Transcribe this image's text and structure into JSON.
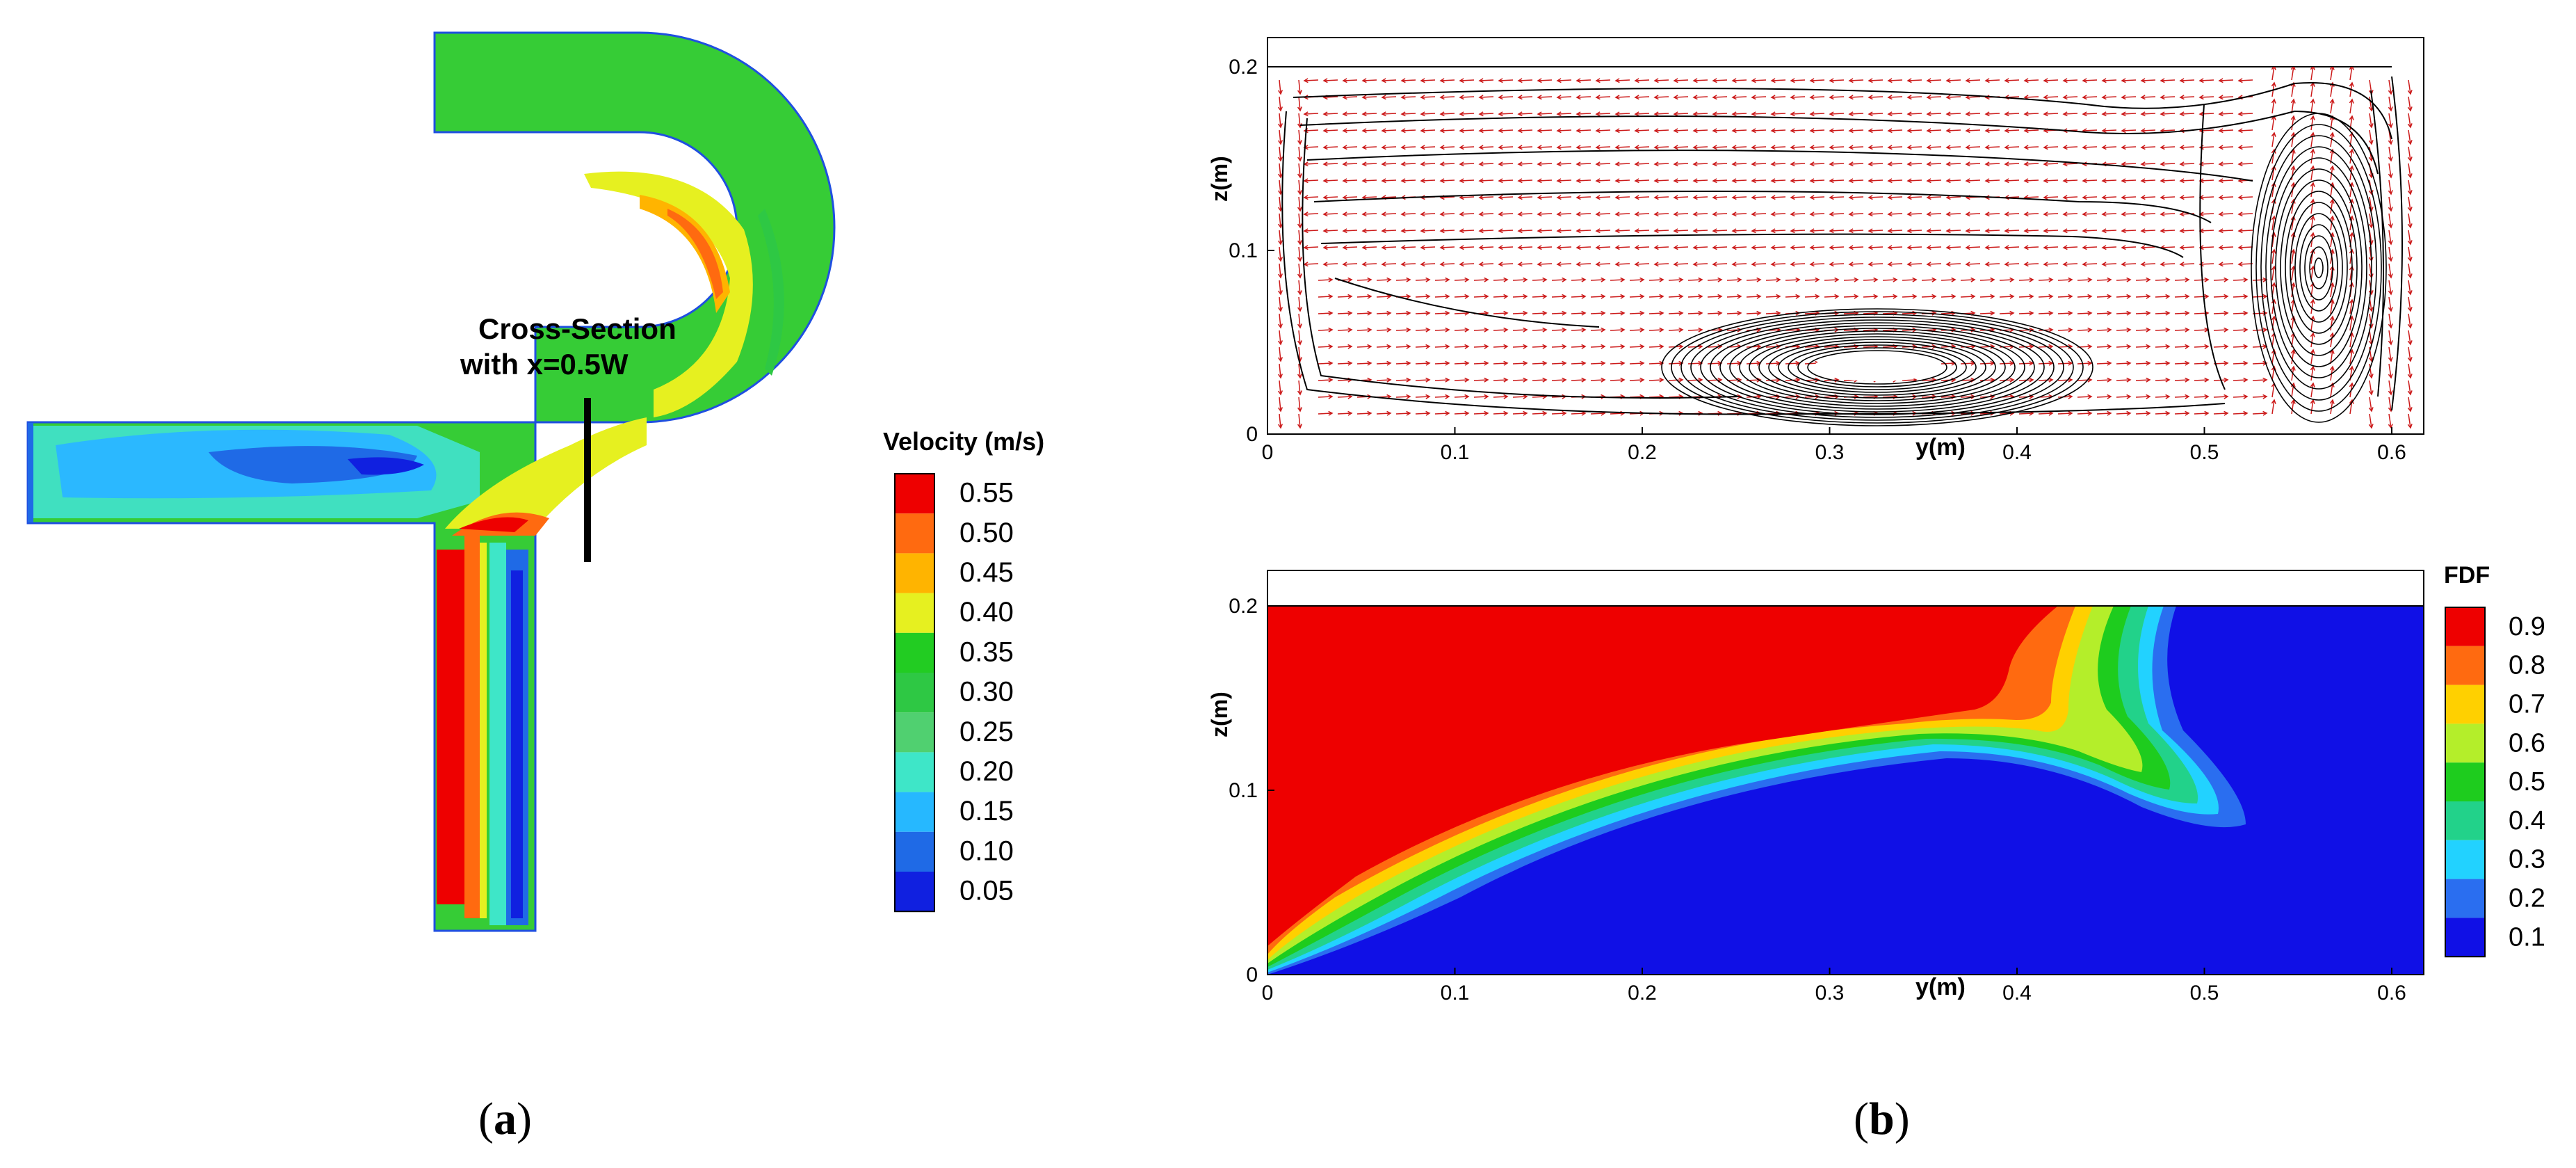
{
  "panel_a": {
    "annotation_line1": "Cross-Section",
    "annotation_line2": "with x=0.5W",
    "legend_title": "Velocity (m/s)",
    "legend_levels": [
      "0.55",
      "0.50",
      "0.45",
      "0.40",
      "0.35",
      "0.30",
      "0.25",
      "0.20",
      "0.15",
      "0.10",
      "0.05"
    ],
    "legend_colors": [
      "#ee0000",
      "#ff6a10",
      "#ffb400",
      "#e6f020",
      "#22cc22",
      "#2ec844",
      "#50d070",
      "#3ee6c8",
      "#26b8ff",
      "#1f6ae6",
      "#1020e0"
    ],
    "caption_open": "(",
    "caption_letter": "a",
    "caption_close": ")"
  },
  "panel_b": {
    "top_plot": {
      "xlabel": "y(m)",
      "ylabel": "z(m)",
      "xticks": [
        "0",
        "0.1",
        "0.2",
        "0.3",
        "0.4",
        "0.5",
        "0.6"
      ],
      "yticks": [
        "0",
        "0.1",
        "0.2"
      ],
      "arrow_color": "#cc1a1a",
      "streamline_color": "#000000"
    },
    "bottom_plot": {
      "xlabel": "y(m)",
      "ylabel": "z(m)",
      "xticks": [
        "0",
        "0.1",
        "0.2",
        "0.3",
        "0.4",
        "0.5",
        "0.6"
      ],
      "yticks": [
        "0",
        "0.1",
        "0.2"
      ],
      "legend_title": "FDF",
      "legend_levels": [
        "0.9",
        "0.8",
        "0.7",
        "0.6",
        "0.5",
        "0.4",
        "0.3",
        "0.2",
        "0.1"
      ],
      "legend_colors": [
        "#ee0000",
        "#ff6a10",
        "#ffd000",
        "#b4ee2a",
        "#1ecc1e",
        "#22d28a",
        "#22d2ff",
        "#2a6ef0",
        "#1010e6"
      ]
    },
    "caption_open": "(",
    "caption_letter": "b",
    "caption_close": ")"
  }
}
